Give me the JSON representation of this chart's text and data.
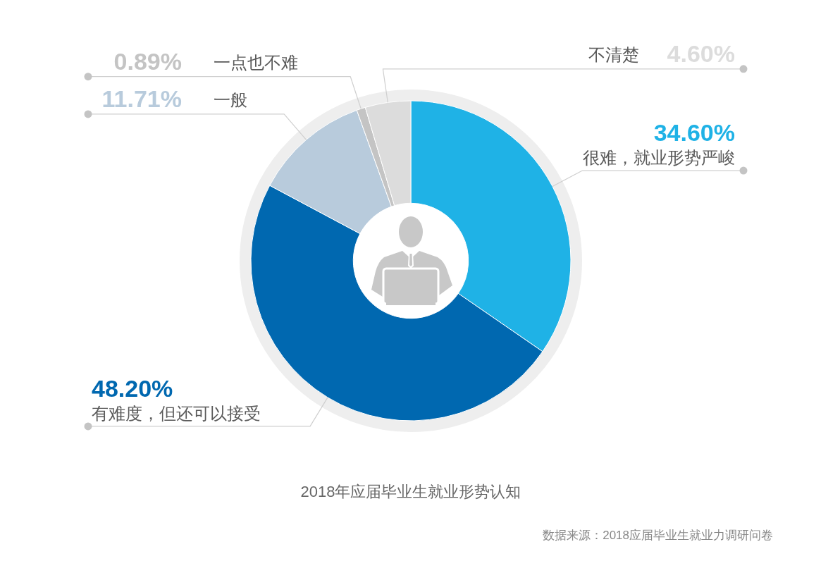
{
  "chart_data": {
    "type": "donut",
    "title": "2018年应届毕业生就业形势认知",
    "categories": [
      "很难，就业形势严峻",
      "有难度，但还可以接受",
      "一般",
      "一点也不难",
      "不清楚"
    ],
    "values": [
      34.6,
      48.2,
      11.71,
      0.89,
      4.6
    ],
    "colors": [
      "#1fb2e6",
      "#0068b0",
      "#b8cbdc",
      "#c4c4c4",
      "#dcdcdc"
    ],
    "value_labels": [
      "34.60%",
      "48.20%",
      "11.71%",
      "0.89%",
      "4.60%"
    ],
    "annotations": [
      "数据来源：2018应届毕业生就业力调研问卷"
    ]
  }
}
